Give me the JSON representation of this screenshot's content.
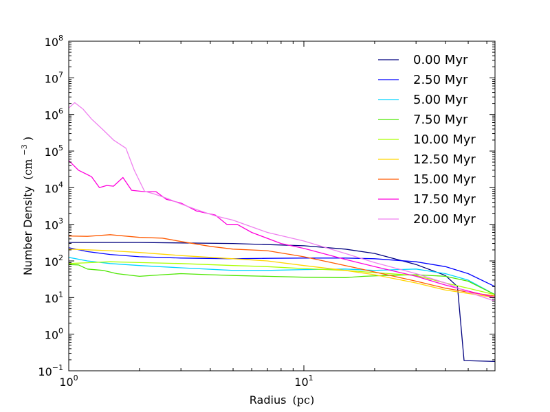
{
  "chart_data": {
    "type": "line",
    "title": "",
    "xlabel": "Radius",
    "xlabel_unit": "(pc)",
    "ylabel": "Number Density",
    "ylabel_unit": "(cm",
    "ylabel_unit_exp": "−3",
    "ylabel_unit_close": ")",
    "xscale": "log",
    "yscale": "log",
    "xlim": [
      1,
      65
    ],
    "ylim": [
      0.1,
      100000000
    ],
    "x_ticks": [
      {
        "value": 1,
        "base": "10",
        "exp": "0"
      },
      {
        "value": 10,
        "base": "10",
        "exp": "1"
      }
    ],
    "y_ticks": [
      {
        "value": 0.1,
        "base": "10",
        "exp": "−1"
      },
      {
        "value": 1,
        "base": "10",
        "exp": "0"
      },
      {
        "value": 10,
        "base": "10",
        "exp": "1"
      },
      {
        "value": 100,
        "base": "10",
        "exp": "2"
      },
      {
        "value": 1000,
        "base": "10",
        "exp": "3"
      },
      {
        "value": 10000,
        "base": "10",
        "exp": "4"
      },
      {
        "value": 100000,
        "base": "10",
        "exp": "5"
      },
      {
        "value": 1000000,
        "base": "10",
        "exp": "6"
      },
      {
        "value": 10000000,
        "base": "10",
        "exp": "7"
      },
      {
        "value": 100000000,
        "base": "10",
        "exp": "8"
      }
    ],
    "grid": false,
    "legend_position": "top-right",
    "series": [
      {
        "name": "0.00 Myr",
        "color": "#00007f",
        "x": [
          1,
          2,
          5,
          10,
          15,
          20,
          30,
          40,
          45,
          48,
          65
        ],
        "y": [
          320,
          320,
          300,
          260,
          210,
          160,
          80,
          40,
          20,
          0.19,
          0.18
        ]
      },
      {
        "name": "2.50 Myr",
        "color": "#0000ff",
        "x": [
          1,
          1.2,
          1.5,
          2,
          3,
          5,
          7,
          10,
          15,
          20,
          30,
          40,
          50,
          65
        ],
        "y": [
          230,
          180,
          150,
          130,
          120,
          115,
          118,
          120,
          120,
          115,
          95,
          70,
          45,
          20
        ]
      },
      {
        "name": "5.00 Myr",
        "color": "#00d4ff",
        "x": [
          1,
          1.2,
          1.5,
          2,
          3,
          5,
          7,
          10,
          15,
          20,
          25,
          30,
          40,
          50,
          65
        ],
        "y": [
          125,
          100,
          85,
          75,
          65,
          55,
          55,
          58,
          60,
          55,
          58,
          60,
          45,
          30,
          12
        ]
      },
      {
        "name": "7.50 Myr",
        "color": "#4ce600",
        "x": [
          1,
          1.1,
          1.2,
          1.4,
          1.6,
          2,
          2.5,
          3,
          4,
          5,
          7,
          10,
          15,
          18,
          22,
          30,
          40,
          50,
          65
        ],
        "y": [
          80,
          78,
          60,
          55,
          45,
          38,
          42,
          45,
          42,
          40,
          38,
          36,
          35,
          38,
          40,
          42,
          38,
          28,
          12
        ]
      },
      {
        "name": "10.00 Myr",
        "color": "#aaff00",
        "x": [
          1,
          1.5,
          2,
          3,
          5,
          7,
          10,
          15,
          20,
          30,
          40,
          50,
          65
        ],
        "y": [
          85,
          95,
          90,
          85,
          75,
          70,
          62,
          55,
          48,
          40,
          25,
          18,
          12
        ]
      },
      {
        "name": "12.50 Myr",
        "color": "#ffd500",
        "x": [
          1,
          1.5,
          2,
          3,
          5,
          7,
          10,
          15,
          20,
          30,
          40,
          50,
          65
        ],
        "y": [
          210,
          190,
          170,
          140,
          115,
          100,
          75,
          55,
          42,
          25,
          16,
          13,
          10
        ]
      },
      {
        "name": "15.00 Myr",
        "color": "#ff5a00",
        "x": [
          1,
          1.2,
          1.5,
          2,
          2.5,
          3,
          4,
          5,
          7,
          10,
          15,
          20,
          30,
          40,
          50,
          65
        ],
        "y": [
          480,
          470,
          520,
          440,
          420,
          340,
          250,
          210,
          190,
          130,
          75,
          50,
          28,
          18,
          14,
          11
        ]
      },
      {
        "name": "17.50 Myr",
        "color": "#ff00dc",
        "x": [
          1,
          1.1,
          1.25,
          1.35,
          1.45,
          1.55,
          1.7,
          1.85,
          2.1,
          2.35,
          2.6,
          3,
          3.5,
          4.2,
          4.7,
          5.2,
          6,
          8,
          10,
          15,
          20,
          30,
          40,
          50,
          65
        ],
        "y": [
          55000,
          30000,
          20000,
          10000,
          11500,
          11000,
          19000,
          8500,
          7800,
          7800,
          4800,
          3800,
          2300,
          1800,
          1000,
          1000,
          600,
          300,
          220,
          110,
          70,
          38,
          22,
          15,
          10
        ]
      },
      {
        "name": "20.00 Myr",
        "color": "#ef7fef",
        "x": [
          1,
          1.06,
          1.15,
          1.25,
          1.4,
          1.55,
          1.75,
          1.9,
          2.1,
          2.3,
          2.6,
          3,
          3.5,
          4.2,
          5,
          6,
          7,
          10,
          15,
          20,
          30,
          40,
          50,
          65
        ],
        "y": [
          1500000,
          2100000,
          1400000,
          750000,
          380000,
          200000,
          120000,
          30000,
          8000,
          6800,
          5200,
          3600,
          2500,
          1700,
          1300,
          850,
          600,
          350,
          160,
          90,
          45,
          25,
          14,
          8
        ]
      }
    ]
  }
}
